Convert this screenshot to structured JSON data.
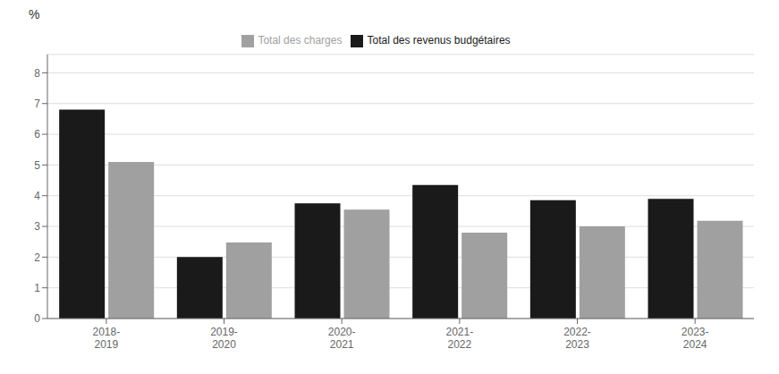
{
  "chart_data": {
    "type": "bar",
    "ylabel": "%",
    "categories": [
      "2018-\n2019",
      "2019-\n2020",
      "2020-\n2021",
      "2021-\n2022",
      "2022-\n2023",
      "2023-\n2024"
    ],
    "series": [
      {
        "name": "Total des revenus budgétaires",
        "color": "#1a1a1a",
        "values": [
          6.8,
          2.0,
          3.75,
          4.35,
          3.85,
          3.9
        ]
      },
      {
        "name": "Total des charges",
        "color": "#a0a0a0",
        "values": [
          5.1,
          2.48,
          3.55,
          2.8,
          3.0,
          3.18
        ]
      }
    ],
    "ylim": [
      0,
      8.6
    ],
    "yticks": [
      0,
      1,
      2,
      3,
      4,
      5,
      6,
      7,
      8
    ],
    "grid": true,
    "legend": "top"
  }
}
